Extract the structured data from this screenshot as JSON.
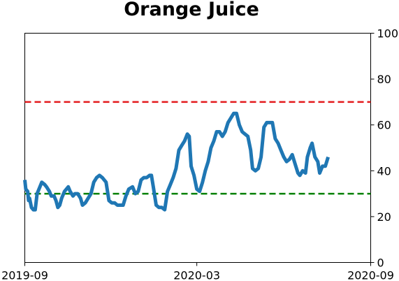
{
  "chart_data": {
    "type": "line",
    "title": "Orange Juice",
    "xlabel": "",
    "ylabel": "",
    "x_ticks": [
      "2019-09",
      "2020-03",
      "2020-09"
    ],
    "x_range": [
      "2019-09-01",
      "2020-09-01"
    ],
    "ylim": [
      0,
      100
    ],
    "y_ticks": [
      0,
      20,
      40,
      60,
      80,
      100
    ],
    "y_axis_side": "right",
    "grid": false,
    "legend": "none",
    "reference_lines": [
      {
        "value": 70,
        "color": "#e31a1c",
        "style": "dashed"
      },
      {
        "value": 30,
        "color": "#008000",
        "style": "dashed"
      }
    ],
    "series": [
      {
        "color": "#1f77b4",
        "points": [
          [
            "2019-09-01",
            36
          ],
          [
            "2019-09-02",
            32
          ],
          [
            "2019-09-04",
            31
          ],
          [
            "2019-09-05",
            27
          ],
          [
            "2019-09-06",
            28
          ],
          [
            "2019-09-08",
            24
          ],
          [
            "2019-09-10",
            23
          ],
          [
            "2019-09-12",
            23
          ],
          [
            "2019-09-14",
            30
          ],
          [
            "2019-09-17",
            33
          ],
          [
            "2019-09-19",
            35
          ],
          [
            "2019-09-22",
            34
          ],
          [
            "2019-09-24",
            33
          ],
          [
            "2019-09-27",
            31
          ],
          [
            "2019-09-29",
            29
          ],
          [
            "2019-10-02",
            29
          ],
          [
            "2019-10-04",
            27
          ],
          [
            "2019-10-06",
            24
          ],
          [
            "2019-10-08",
            25
          ],
          [
            "2019-10-10",
            28
          ],
          [
            "2019-10-13",
            31
          ],
          [
            "2019-10-17",
            33
          ],
          [
            "2019-10-19",
            31
          ],
          [
            "2019-10-22",
            29
          ],
          [
            "2019-10-24",
            30
          ],
          [
            "2019-10-27",
            30
          ],
          [
            "2019-10-30",
            28
          ],
          [
            "2019-11-01",
            25
          ],
          [
            "2019-11-04",
            26
          ],
          [
            "2019-11-07",
            28
          ],
          [
            "2019-11-10",
            30
          ],
          [
            "2019-11-13",
            35
          ],
          [
            "2019-11-16",
            37
          ],
          [
            "2019-11-19",
            38
          ],
          [
            "2019-11-22",
            37
          ],
          [
            "2019-11-26",
            35
          ],
          [
            "2019-11-29",
            27
          ],
          [
            "2019-12-02",
            26
          ],
          [
            "2019-12-05",
            26
          ],
          [
            "2019-12-08",
            25
          ],
          [
            "2019-12-11",
            25
          ],
          [
            "2019-12-14",
            25
          ],
          [
            "2019-12-17",
            29
          ],
          [
            "2019-12-20",
            32
          ],
          [
            "2019-12-24",
            33
          ],
          [
            "2019-12-27",
            30
          ],
          [
            "2019-12-30",
            31
          ],
          [
            "2020-01-02",
            36
          ],
          [
            "2020-01-05",
            37
          ],
          [
            "2020-01-08",
            37
          ],
          [
            "2020-01-11",
            38
          ],
          [
            "2020-01-13",
            38
          ],
          [
            "2020-01-15",
            33
          ],
          [
            "2020-01-18",
            25
          ],
          [
            "2020-01-21",
            24
          ],
          [
            "2020-01-24",
            24
          ],
          [
            "2020-01-27",
            23
          ],
          [
            "2020-01-30",
            31
          ],
          [
            "2020-02-02",
            34
          ],
          [
            "2020-02-05",
            37
          ],
          [
            "2020-02-08",
            41
          ],
          [
            "2020-02-11",
            49
          ],
          [
            "2020-02-14",
            51
          ],
          [
            "2020-02-17",
            53
          ],
          [
            "2020-02-20",
            56
          ],
          [
            "2020-02-22",
            55
          ],
          [
            "2020-02-24",
            42
          ],
          [
            "2020-02-27",
            38
          ],
          [
            "2020-03-01",
            32
          ],
          [
            "2020-03-04",
            31
          ],
          [
            "2020-03-07",
            35
          ],
          [
            "2020-03-10",
            40
          ],
          [
            "2020-03-13",
            44
          ],
          [
            "2020-03-16",
            50
          ],
          [
            "2020-03-19",
            53
          ],
          [
            "2020-03-22",
            57
          ],
          [
            "2020-03-25",
            57
          ],
          [
            "2020-03-28",
            55
          ],
          [
            "2020-03-31",
            57
          ],
          [
            "2020-04-03",
            61
          ],
          [
            "2020-04-06",
            63
          ],
          [
            "2020-04-09",
            65
          ],
          [
            "2020-04-12",
            65
          ],
          [
            "2020-04-15",
            60
          ],
          [
            "2020-04-18",
            57
          ],
          [
            "2020-04-21",
            56
          ],
          [
            "2020-04-24",
            55
          ],
          [
            "2020-04-27",
            49
          ],
          [
            "2020-04-29",
            41
          ],
          [
            "2020-05-02",
            40
          ],
          [
            "2020-05-05",
            41
          ],
          [
            "2020-05-08",
            46
          ],
          [
            "2020-05-11",
            59
          ],
          [
            "2020-05-14",
            61
          ],
          [
            "2020-05-17",
            61
          ],
          [
            "2020-05-20",
            61
          ],
          [
            "2020-05-23",
            54
          ],
          [
            "2020-05-26",
            52
          ],
          [
            "2020-05-29",
            49
          ],
          [
            "2020-06-01",
            46
          ],
          [
            "2020-06-04",
            44
          ],
          [
            "2020-06-07",
            45
          ],
          [
            "2020-06-10",
            47
          ],
          [
            "2020-06-13",
            43
          ],
          [
            "2020-06-16",
            39
          ],
          [
            "2020-06-18",
            38
          ],
          [
            "2020-06-21",
            40
          ],
          [
            "2020-06-24",
            39
          ],
          [
            "2020-06-26",
            46
          ],
          [
            "2020-06-29",
            50
          ],
          [
            "2020-07-01",
            52
          ],
          [
            "2020-07-04",
            46
          ],
          [
            "2020-07-07",
            44
          ],
          [
            "2020-07-09",
            39
          ],
          [
            "2020-07-12",
            42
          ],
          [
            "2020-07-15",
            42
          ],
          [
            "2020-07-18",
            46
          ]
        ]
      }
    ]
  }
}
